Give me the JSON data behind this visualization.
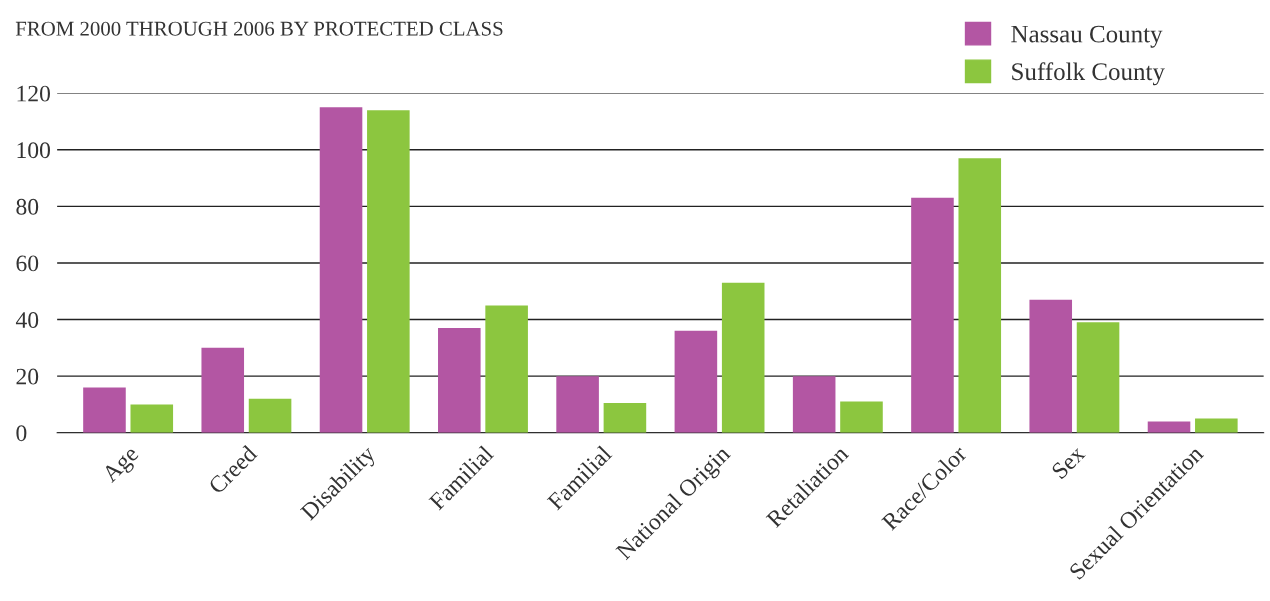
{
  "chart_data": {
    "type": "bar",
    "title": "FROM 2000 THROUGH 2006 BY PROTECTED CLASS",
    "categories": [
      "Age",
      "Creed",
      "Disability",
      "Familial",
      "Familial",
      "National Origin",
      "Retaliation",
      "Race/Color",
      "Sex",
      "Sexual Orientation"
    ],
    "series": [
      {
        "name": "Nassau County",
        "color": "#b356a3",
        "values": [
          16,
          30,
          115,
          37,
          20,
          36,
          20,
          83,
          47,
          4
        ]
      },
      {
        "name": "Suffolk County",
        "color": "#8cc63f",
        "values": [
          10,
          12,
          114,
          45,
          10.5,
          53,
          11,
          97,
          39,
          5
        ]
      }
    ],
    "ylim": [
      0,
      120
    ],
    "yticks": [
      0,
      20,
      40,
      60,
      80,
      100,
      120
    ],
    "grid": "y",
    "legend": "top right"
  }
}
